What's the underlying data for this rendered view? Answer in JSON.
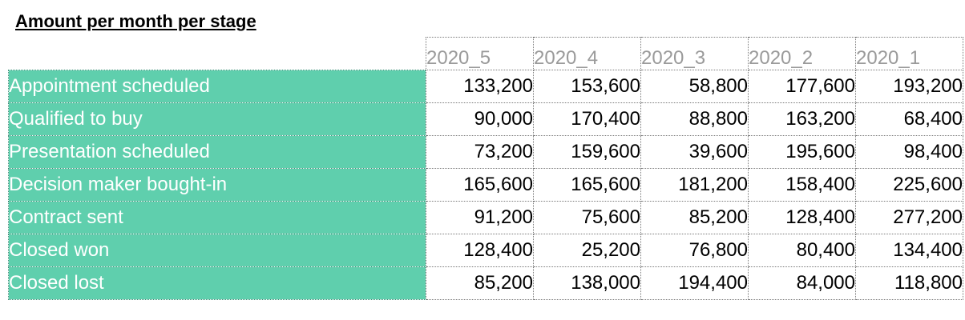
{
  "title": "Amount per month per stage",
  "headers": [
    "2020_5",
    "2020_4",
    "2020_3",
    "2020_2",
    "2020_1"
  ],
  "rows": [
    {
      "label": "Appointment scheduled",
      "values": [
        "133,200",
        "153,600",
        "58,800",
        "177,600",
        "193,200"
      ]
    },
    {
      "label": "Qualified to buy",
      "values": [
        "90,000",
        "170,400",
        "88,800",
        "163,200",
        "68,400"
      ]
    },
    {
      "label": "Presentation scheduled",
      "values": [
        "73,200",
        "159,600",
        "39,600",
        "195,600",
        "98,400"
      ]
    },
    {
      "label": "Decision maker bought-in",
      "values": [
        "165,600",
        "165,600",
        "181,200",
        "158,400",
        "225,600"
      ]
    },
    {
      "label": "Contract sent",
      "values": [
        "91,200",
        "75,600",
        "85,200",
        "128,400",
        "277,200"
      ]
    },
    {
      "label": "Closed won",
      "values": [
        "128,400",
        "25,200",
        "76,800",
        "80,400",
        "134,400"
      ]
    },
    {
      "label": "Closed lost",
      "values": [
        "85,200",
        "138,000",
        "194,400",
        "84,000",
        "118,800"
      ]
    }
  ],
  "colors": {
    "label_fill": "#5fcfad",
    "label_text": "#ffffff",
    "header_text": "#9a9a9a"
  }
}
